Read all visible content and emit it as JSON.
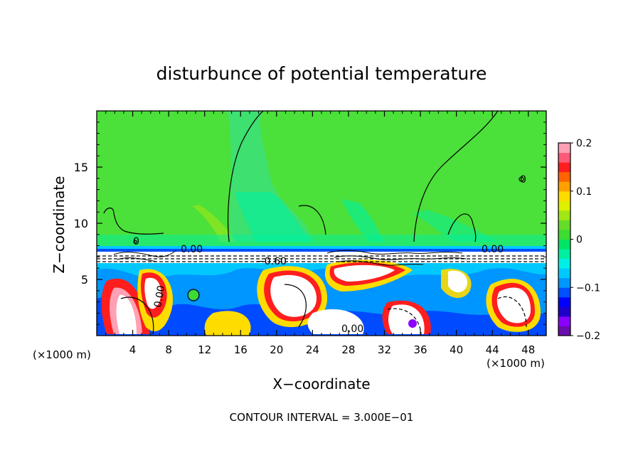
{
  "chart_data": {
    "type": "heatmap",
    "title": "disturbunce of potential temperature",
    "xlabel": "X−coordinate",
    "ylabel": "Z−coordinate",
    "x_unit_left": "(×1000 m)",
    "x_unit_right": "(×1000 m)",
    "x_ticks": [
      "4",
      "8",
      "12",
      "16",
      "20",
      "24",
      "28",
      "32",
      "36",
      "40",
      "44",
      "48"
    ],
    "y_ticks": [
      "5",
      "10",
      "15"
    ],
    "xlim": [
      0,
      50
    ],
    "ylim": [
      0,
      20
    ],
    "footer": "CONTOUR INTERVAL = 3.000E−01",
    "colorbar": {
      "range": [
        -0.2,
        0.2
      ],
      "tick_labels": [
        "0.2",
        "0.1",
        "0",
        "−0.1",
        "−0.2"
      ],
      "tick_values": [
        0.2,
        0.1,
        0,
        -0.1,
        -0.2
      ],
      "colors": [
        "#6a0dad",
        "#8b00ff",
        "#1e00c8",
        "#0000ff",
        "#0050ff",
        "#0096ff",
        "#00c8ff",
        "#00f0e6",
        "#00f0a0",
        "#00e664",
        "#3cdc32",
        "#64dc28",
        "#a0e614",
        "#dcf000",
        "#ffdc00",
        "#ffa000",
        "#ff6400",
        "#ff1e1e",
        "#ff5a78",
        "#ffa0b4"
      ]
    },
    "contour_labels": [
      {
        "text": "0.00",
        "x": 10.8,
        "z": 7.7
      },
      {
        "text": "−0.60",
        "x": 20,
        "z": 6.6
      },
      {
        "text": "0.00",
        "x": 45,
        "z": 7.7
      },
      {
        "text": "0.00",
        "x": 8,
        "z": 3.5
      },
      {
        "text": "0.00",
        "x": 29,
        "z": 0.7
      },
      {
        "text": "0",
        "x": 47,
        "z": 14
      },
      {
        "text": "0",
        "x": 9,
        "z": 8.2
      }
    ],
    "grid": false,
    "legend": "colorbar right"
  }
}
